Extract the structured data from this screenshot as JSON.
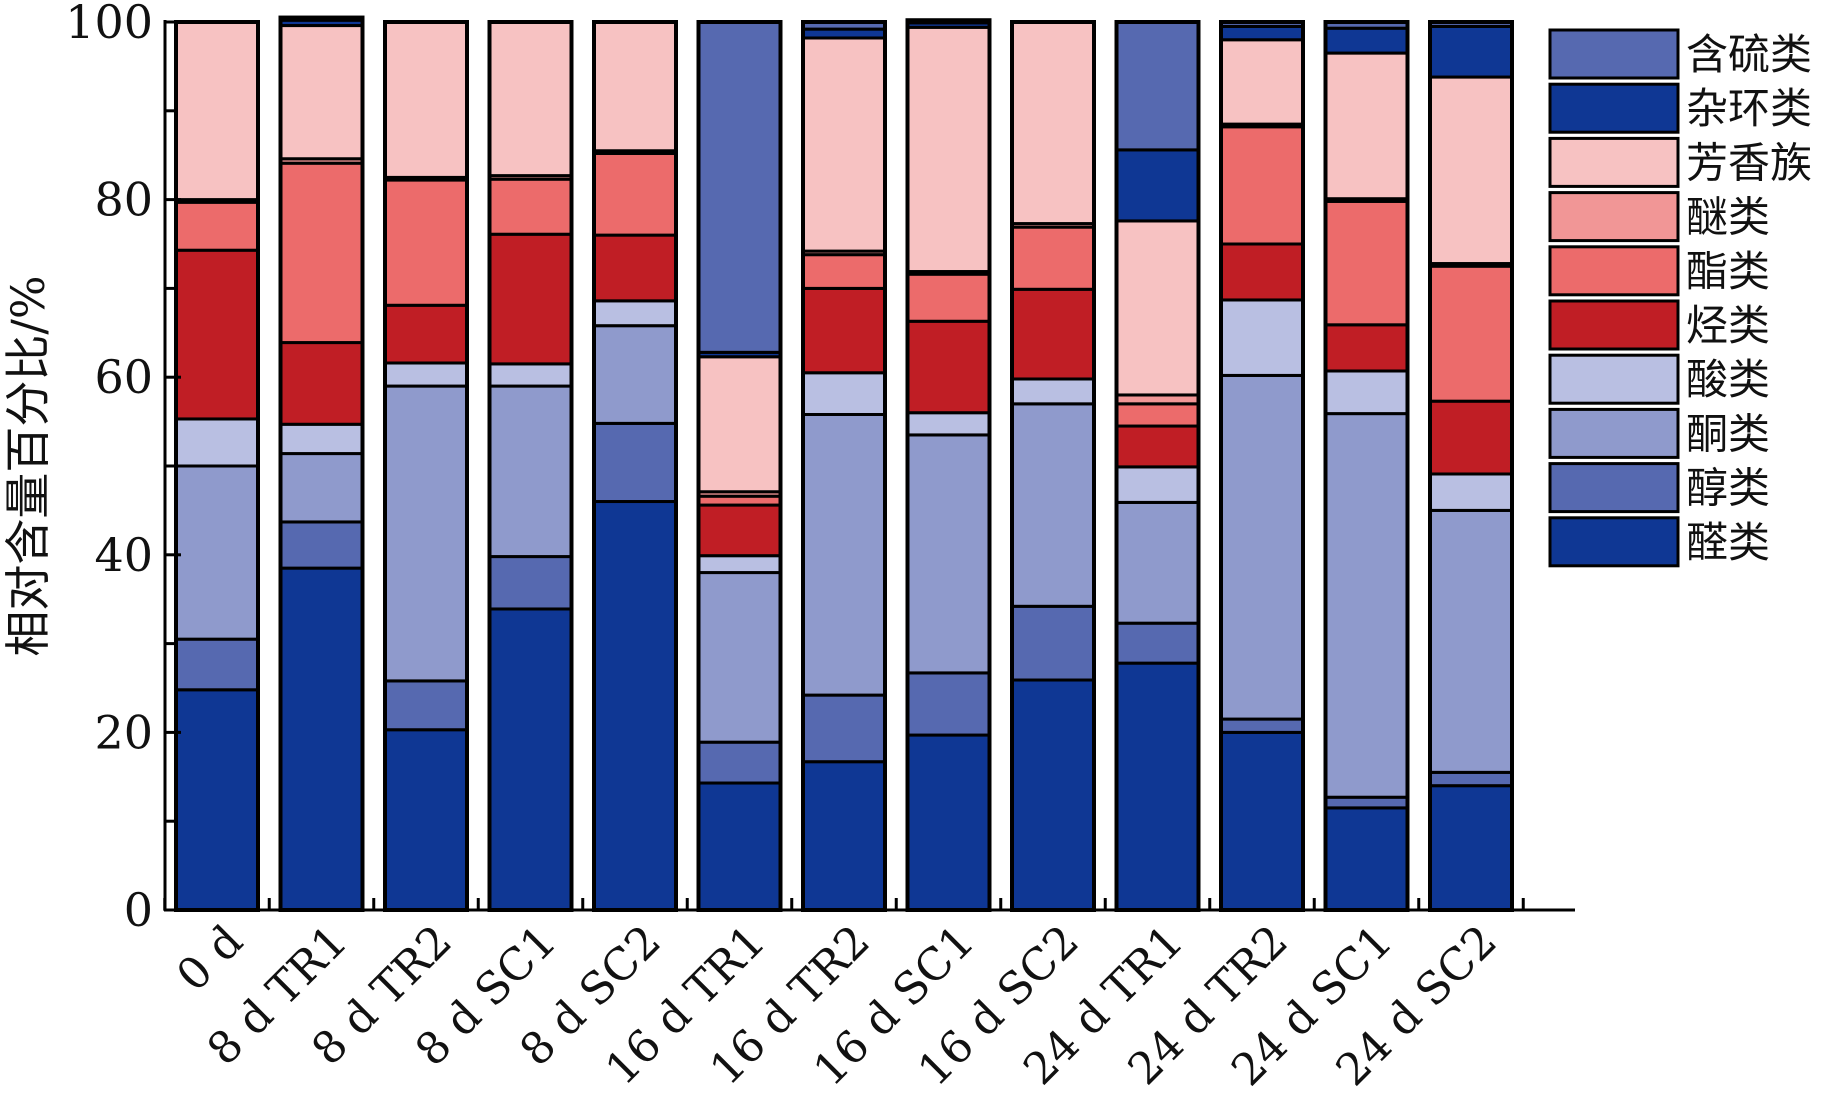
{
  "chart_data": {
    "type": "bar",
    "stacked": true,
    "ylabel": "相对含量百分比/%",
    "xlabel": "",
    "ylim": [
      0,
      100
    ],
    "yticks": [
      0,
      20,
      40,
      60,
      80,
      100
    ],
    "ytick_labels": [
      "0",
      "20",
      "40",
      "60",
      "80",
      "100"
    ],
    "grid": false,
    "legend_position": "right",
    "categories": [
      "0 d",
      "8 d TR1",
      "8 d TR2",
      "8 d SC1",
      "8 d SC2",
      "16 d TR1",
      "16 d TR2",
      "16 d SC1",
      "16 d SC2",
      "24 d TR1",
      "24 d TR2",
      "24 d SC1",
      "24 d SC2"
    ],
    "series": [
      {
        "name": "醛类",
        "color": "#0f3794",
        "values": [
          24.8,
          38.5,
          20.3,
          33.9,
          46.0,
          14.3,
          16.7,
          19.7,
          25.9,
          27.8,
          20.0,
          11.5,
          14.0
        ]
      },
      {
        "name": "醇类",
        "color": "#5669b0",
        "values": [
          5.7,
          5.2,
          5.5,
          5.9,
          8.8,
          4.6,
          7.5,
          7.0,
          8.3,
          4.5,
          1.5,
          1.2,
          1.5
        ]
      },
      {
        "name": "酮类",
        "color": "#8f9acc",
        "values": [
          19.5,
          7.7,
          33.2,
          19.2,
          11.0,
          19.1,
          31.6,
          26.8,
          22.8,
          13.6,
          38.7,
          43.2,
          29.5
        ]
      },
      {
        "name": "酸类",
        "color": "#b9bfe2",
        "values": [
          5.3,
          3.3,
          2.6,
          2.5,
          2.8,
          1.9,
          4.7,
          2.5,
          2.8,
          4.0,
          8.5,
          4.8,
          4.1
        ]
      },
      {
        "name": "烃类",
        "color": "#c01e25",
        "values": [
          19.0,
          9.2,
          6.5,
          14.6,
          7.4,
          5.7,
          9.5,
          10.3,
          10.1,
          4.6,
          6.3,
          5.2,
          8.2
        ]
      },
      {
        "name": "酯类",
        "color": "#ec6b6b",
        "values": [
          5.4,
          20.2,
          14.1,
          6.2,
          9.2,
          1.0,
          3.8,
          5.3,
          7.0,
          2.5,
          13.2,
          13.9,
          15.2
        ]
      },
      {
        "name": "醚类",
        "color": "#f19696",
        "values": [
          0.3,
          0.5,
          0.3,
          0.4,
          0.3,
          0.5,
          0.4,
          0.3,
          0.4,
          1.0,
          0.3,
          0.3,
          0.3
        ]
      },
      {
        "name": "芳香族",
        "color": "#f7c2c2",
        "values": [
          20.0,
          15.0,
          17.5,
          17.3,
          14.5,
          15.2,
          24.0,
          27.5,
          22.7,
          19.6,
          9.5,
          16.4,
          21.0
        ]
      },
      {
        "name": "杂环类",
        "color": "#0f3794",
        "values": [
          0.0,
          0.6,
          0.0,
          0.0,
          0.0,
          0.5,
          1.0,
          0.5,
          0.0,
          8.0,
          1.5,
          2.8,
          5.7
        ]
      },
      {
        "name": "含硫类",
        "color": "#5669b0",
        "values": [
          0.0,
          0.3,
          0.0,
          0.0,
          0.0,
          37.2,
          0.8,
          0.3,
          0.0,
          14.4,
          0.5,
          0.7,
          0.5
        ]
      }
    ]
  }
}
